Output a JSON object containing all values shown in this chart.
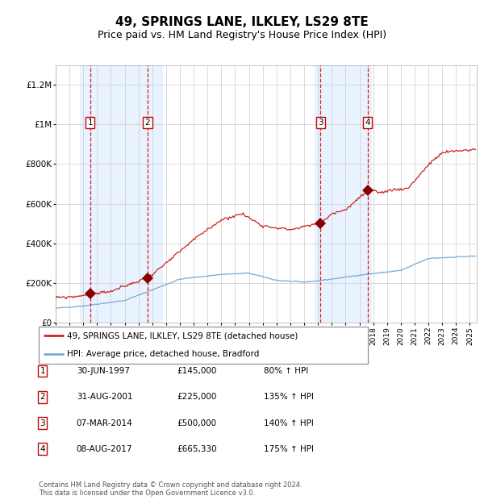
{
  "title": "49, SPRINGS LANE, ILKLEY, LS29 8TE",
  "subtitle": "Price paid vs. HM Land Registry's House Price Index (HPI)",
  "title_fontsize": 11,
  "subtitle_fontsize": 9,
  "ylim": [
    0,
    1300000
  ],
  "xlim_start": 1995.0,
  "xlim_end": 2025.5,
  "ytick_labels": [
    "£0",
    "£200K",
    "£400K",
    "£600K",
    "£800K",
    "£1M",
    "£1.2M"
  ],
  "ytick_values": [
    0,
    200000,
    400000,
    600000,
    800000,
    1000000,
    1200000
  ],
  "xtick_years": [
    1995,
    1996,
    1997,
    1998,
    1999,
    2000,
    2001,
    2002,
    2003,
    2004,
    2005,
    2006,
    2007,
    2008,
    2009,
    2010,
    2011,
    2012,
    2013,
    2014,
    2015,
    2016,
    2017,
    2018,
    2019,
    2020,
    2021,
    2022,
    2023,
    2024,
    2025
  ],
  "background_color": "#ffffff",
  "grid_color": "#cccccc",
  "hpi_line_color": "#7aaad0",
  "price_line_color": "#cc2222",
  "sale_marker_color": "#880000",
  "sale_marker_size": 7,
  "shade_color": "#ddeeff",
  "shade_alpha": 0.65,
  "purchases": [
    {
      "date_year": 1997.495,
      "price": 145000,
      "label": "1"
    },
    {
      "date_year": 2001.66,
      "price": 225000,
      "label": "2"
    },
    {
      "date_year": 2014.18,
      "price": 500000,
      "label": "3"
    },
    {
      "date_year": 2017.595,
      "price": 665330,
      "label": "4"
    }
  ],
  "shade_regions": [
    {
      "start": 1996.75,
      "end": 2002.75
    },
    {
      "start": 2013.75,
      "end": 2017.9
    }
  ],
  "legend_entries": [
    {
      "label": "49, SPRINGS LANE, ILKLEY, LS29 8TE (detached house)",
      "color": "#cc2222"
    },
    {
      "label": "HPI: Average price, detached house, Bradford",
      "color": "#7aaad0"
    }
  ],
  "table_rows": [
    {
      "num": "1",
      "date": "30-JUN-1997",
      "price": "£145,000",
      "hpi": "80% ↑ HPI"
    },
    {
      "num": "2",
      "date": "31-AUG-2001",
      "price": "£225,000",
      "hpi": "135% ↑ HPI"
    },
    {
      "num": "3",
      "date": "07-MAR-2014",
      "price": "£500,000",
      "hpi": "140% ↑ HPI"
    },
    {
      "num": "4",
      "date": "08-AUG-2017",
      "price": "£665,330",
      "hpi": "175% ↑ HPI"
    }
  ],
  "footnote1": "Contains HM Land Registry data © Crown copyright and database right 2024.",
  "footnote2": "This data is licensed under the Open Government Licence v3.0."
}
